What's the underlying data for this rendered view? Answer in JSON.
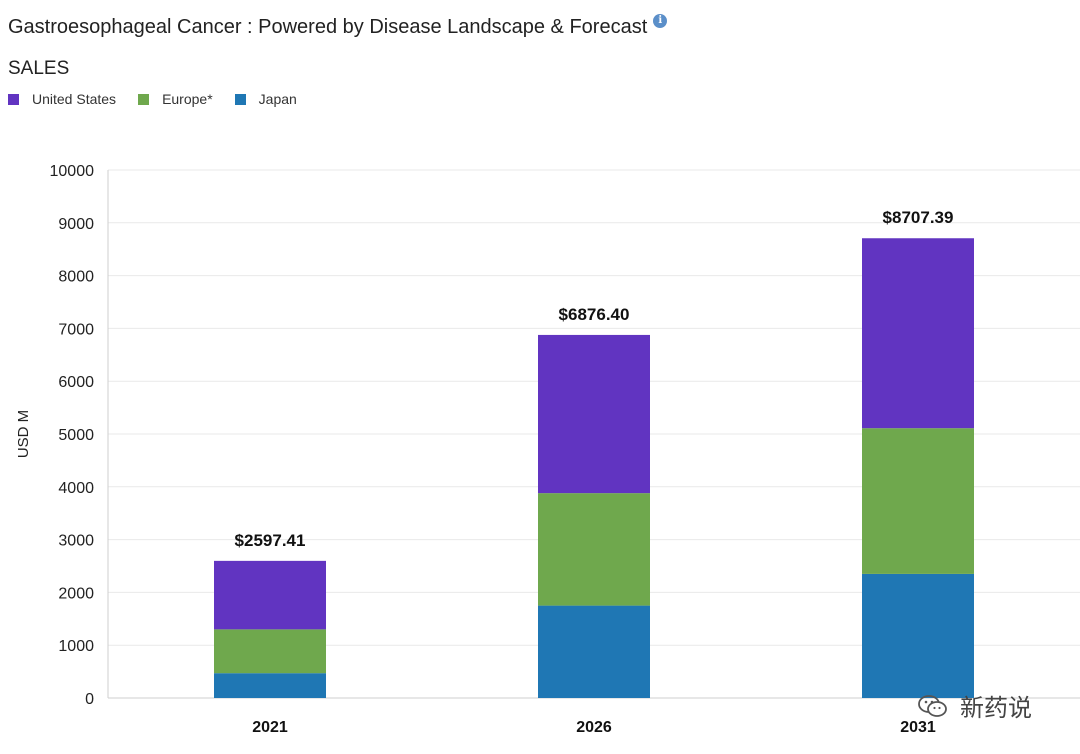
{
  "title": "Gastroesophageal Cancer : Powered by Disease Landscape & Forecast",
  "subtitle": "SALES",
  "watermark": "新药说",
  "chart_data": {
    "type": "bar",
    "stacked": true,
    "categories": [
      "2021",
      "2026",
      "2031"
    ],
    "series": [
      {
        "name": "Japan",
        "color": "#1f77b4",
        "values": [
          470,
          1750,
          2350
        ]
      },
      {
        "name": "Europe*",
        "color": "#6fa84d",
        "values": [
          830,
          2130,
          2760
        ]
      },
      {
        "name": "United States",
        "color": "#6134c1",
        "values": [
          1297.41,
          2996.4,
          3597.39
        ]
      }
    ],
    "legend": [
      {
        "name": "United States",
        "color": "#6134c1"
      },
      {
        "name": "Europe*",
        "color": "#6fa84d"
      },
      {
        "name": "Japan",
        "color": "#1f77b4"
      }
    ],
    "totals": [
      "$2597.41",
      "$6876.40",
      "$8707.39"
    ],
    "ylabel": "USD M",
    "xlabel": "",
    "ylim": [
      0,
      10000
    ],
    "yticks": [
      0,
      1000,
      2000,
      3000,
      4000,
      5000,
      6000,
      7000,
      8000,
      9000,
      10000
    ],
    "grid": true,
    "legend_position": "top-left"
  }
}
